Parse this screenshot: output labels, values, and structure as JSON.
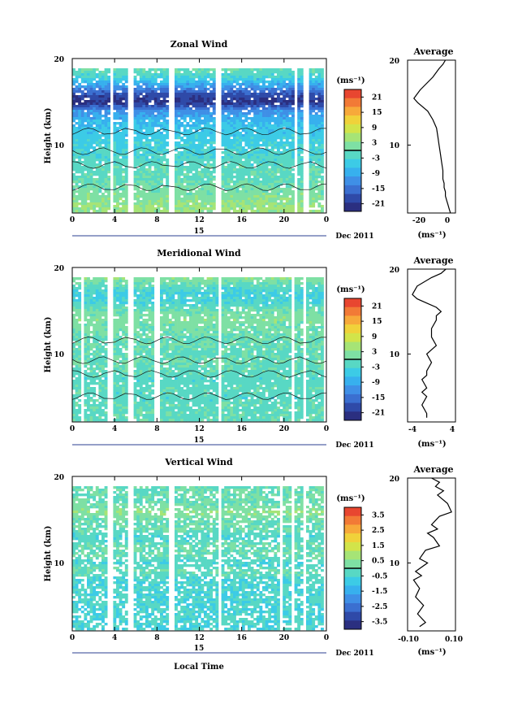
{
  "colorbar_colors": [
    "#2b2f80",
    "#2f4aa8",
    "#3b6fd0",
    "#3f8fe6",
    "#37b0ee",
    "#3ccbe6",
    "#58d8c4",
    "#7ee0a4",
    "#a6e476",
    "#d2e44a",
    "#f0d23a",
    "#f7a93a",
    "#f27a36",
    "#e84630"
  ],
  "panels": [
    {
      "id": "zonal",
      "title": "Zonal Wind",
      "ylabel": "Height (km)",
      "yticks": [
        "20",
        "10"
      ],
      "xticks": [
        "0",
        "4",
        "8",
        "12",
        "16",
        "20",
        "0"
      ],
      "date_label": "15",
      "month_label": "Dec 2011",
      "unit": "(ms⁻¹)",
      "cbar_ticks": [
        "21",
        "15",
        "9",
        "3",
        "-3",
        "-9",
        "-15",
        "-21"
      ],
      "avg_title": "Average",
      "avg_xticks": [
        "-20",
        "0"
      ],
      "avg_yticks": [
        "20",
        "10"
      ],
      "avg_unit": "(ms⁻¹)"
    },
    {
      "id": "meridional",
      "title": "Meridional Wind",
      "ylabel": "Height (km)",
      "yticks": [
        "20",
        "10"
      ],
      "xticks": [
        "0",
        "4",
        "8",
        "12",
        "16",
        "20",
        "0"
      ],
      "date_label": "15",
      "month_label": "Dec 2011",
      "unit": "(ms⁻¹)",
      "cbar_ticks": [
        "21",
        "15",
        "9",
        "3",
        "-3",
        "-9",
        "-15",
        "-21"
      ],
      "avg_title": "Average",
      "avg_xticks": [
        "-4",
        "4"
      ],
      "avg_yticks": [
        "20",
        "10"
      ],
      "avg_unit": "(ms⁻¹)"
    },
    {
      "id": "vertical",
      "title": "Vertical Wind",
      "ylabel": "Height (km)",
      "yticks": [
        "20",
        "10"
      ],
      "xticks": [
        "0",
        "4",
        "8",
        "12",
        "16",
        "20",
        "0"
      ],
      "date_label": "15",
      "month_label": "Dec 2011",
      "unit": "(ms⁻¹)",
      "cbar_ticks": [
        "3.5",
        "2.5",
        "1.5",
        "0.5",
        "-0.5",
        "-1.5",
        "-2.5",
        "-3.5"
      ],
      "avg_title": "Average",
      "avg_xticks": [
        "-0.10",
        "0.10"
      ],
      "avg_yticks": [
        "20",
        "10"
      ],
      "avg_unit": "(ms⁻¹)"
    }
  ],
  "xlabel": "Local Time",
  "chart_data": [
    {
      "type": "heatmap",
      "title": "Zonal Wind",
      "xlabel": "",
      "ylabel": "Height (km)",
      "xlim": [
        0,
        24
      ],
      "ylim": [
        2,
        20
      ],
      "x_tick_labels": [
        "0",
        "4",
        "8",
        "12",
        "16",
        "20",
        "0"
      ],
      "colorbar": {
        "unit": "(ms⁻¹)",
        "range": [
          -24,
          24
        ],
        "ticks": [
          21,
          15,
          9,
          3,
          -3,
          -9,
          -15,
          -21
        ]
      },
      "gaps_hours": [
        [
          3.4,
          3.9
        ],
        [
          5.2,
          5.6
        ],
        [
          9.0,
          9.5
        ],
        [
          13.6,
          14.0
        ],
        [
          21.0,
          21.3
        ],
        [
          22.0,
          22.4
        ]
      ],
      "profile_rows": [
        {
          "height": 19,
          "value": 0
        },
        {
          "height": 18,
          "value": -3
        },
        {
          "height": 17,
          "value": -10
        },
        {
          "height": 16,
          "value": -18
        },
        {
          "height": 15,
          "value": -22
        },
        {
          "height": 14,
          "value": -12
        },
        {
          "height": 13,
          "value": -8
        },
        {
          "height": 12,
          "value": -6
        },
        {
          "height": 11,
          "value": -5
        },
        {
          "height": 10,
          "value": -4
        },
        {
          "height": 9,
          "value": -3
        },
        {
          "height": 8,
          "value": -2
        },
        {
          "height": 7,
          "value": -1
        },
        {
          "height": 6,
          "value": -1
        },
        {
          "height": 5,
          "value": 1
        },
        {
          "height": 4,
          "value": 2
        },
        {
          "height": 3,
          "value": 4
        }
      ]
    },
    {
      "type": "line",
      "title": "Average",
      "xlabel": "(ms⁻¹)",
      "ylabel": "",
      "xlim": [
        -30,
        8
      ],
      "ylim": [
        2,
        20
      ],
      "x": [
        0,
        -2,
        -5,
        -10,
        -20,
        -25,
        -22,
        -14,
        -10,
        -7,
        -6,
        -5,
        -4,
        -3,
        -2,
        -2,
        -1,
        -1,
        0,
        0,
        1,
        2,
        3,
        4
      ],
      "y": [
        20,
        19.5,
        19,
        18,
        16.5,
        15.5,
        15,
        14,
        13,
        12,
        11,
        10,
        9,
        8,
        7,
        6,
        5.5,
        5,
        4.5,
        4,
        3.5,
        3,
        2.5,
        2
      ]
    },
    {
      "type": "heatmap",
      "title": "Meridional Wind",
      "xlabel": "",
      "ylabel": "Height (km)",
      "xlim": [
        0,
        24
      ],
      "ylim": [
        2,
        20
      ],
      "x_tick_labels": [
        "0",
        "4",
        "8",
        "12",
        "16",
        "20",
        "0"
      ],
      "colorbar": {
        "unit": "(ms⁻¹)",
        "range": [
          -24,
          24
        ],
        "ticks": [
          21,
          15,
          9,
          3,
          -3,
          -9,
          -15,
          -21
        ]
      },
      "gaps_hours": [
        [
          0.6,
          0.9
        ],
        [
          3.3,
          3.7
        ],
        [
          5.3,
          5.6
        ],
        [
          7.8,
          8.2
        ],
        [
          11.2,
          11.4
        ],
        [
          13.7,
          14.1
        ],
        [
          20.8,
          21.1
        ],
        [
          21.9,
          22.3
        ]
      ],
      "profile_rows": [
        {
          "height": 19,
          "value": 3
        },
        {
          "height": 18,
          "value": -1
        },
        {
          "height": 17,
          "value": -4
        },
        {
          "height": 16,
          "value": -3
        },
        {
          "height": 15,
          "value": 1
        },
        {
          "height": 14,
          "value": 2
        },
        {
          "height": 13,
          "value": 1
        },
        {
          "height": 12,
          "value": 0
        },
        {
          "height": 11,
          "value": 0
        },
        {
          "height": 10,
          "value": -1
        },
        {
          "height": 9,
          "value": 0
        },
        {
          "height": 8,
          "value": -1
        },
        {
          "height": 7,
          "value": -2
        },
        {
          "height": 6,
          "value": -1
        },
        {
          "height": 5,
          "value": -2
        },
        {
          "height": 4,
          "value": -1
        },
        {
          "height": 3,
          "value": -1
        }
      ]
    },
    {
      "type": "line",
      "title": "Average",
      "xlabel": "(ms⁻¹)",
      "ylabel": "",
      "xlim": [
        -5,
        5
      ],
      "ylim": [
        2,
        20
      ],
      "x": [
        3,
        2,
        0,
        -3,
        -4,
        -3,
        -1,
        1,
        2,
        1,
        1,
        0,
        0,
        1,
        0,
        -1,
        0,
        -1,
        -1,
        -2,
        -1,
        -2,
        -1,
        -2,
        -1,
        -1
      ],
      "y": [
        20,
        19.5,
        19,
        18,
        17,
        16.5,
        16,
        15.5,
        15,
        14.5,
        14,
        13,
        12,
        11,
        10.5,
        10,
        9,
        8,
        7.5,
        7,
        6,
        5.5,
        5,
        4,
        3,
        2.5
      ]
    },
    {
      "type": "heatmap",
      "title": "Vertical Wind",
      "xlabel": "Local Time",
      "ylabel": "Height (km)",
      "xlim": [
        0,
        24
      ],
      "ylim": [
        2,
        20
      ],
      "x_tick_labels": [
        "0",
        "4",
        "8",
        "12",
        "16",
        "20",
        "0"
      ],
      "colorbar": {
        "unit": "(ms⁻¹)",
        "range": [
          -4,
          4
        ],
        "ticks": [
          3.5,
          2.5,
          1.5,
          0.5,
          -0.5,
          -1.5,
          -2.5,
          -3.5
        ]
      },
      "gaps_hours": [
        [
          3.3,
          3.7
        ],
        [
          5.3,
          5.6
        ],
        [
          9.0,
          9.5
        ],
        [
          13.7,
          14.1
        ],
        [
          19.8,
          20.0
        ],
        [
          20.9,
          21.1
        ],
        [
          22.0,
          22.3
        ]
      ],
      "profile_rows": [
        {
          "height": 19,
          "value": 0
        },
        {
          "height": 18,
          "value": 0
        },
        {
          "height": 17,
          "value": 0
        },
        {
          "height": 16,
          "value": 0.5
        },
        {
          "height": 15,
          "value": 0
        },
        {
          "height": 14,
          "value": 0
        },
        {
          "height": 13,
          "value": -0.5
        },
        {
          "height": 12,
          "value": 0
        },
        {
          "height": 11,
          "value": 0
        },
        {
          "height": 10,
          "value": -0.5
        },
        {
          "height": 9,
          "value": 0
        },
        {
          "height": 8,
          "value": -0.5
        },
        {
          "height": 7,
          "value": -0.5
        },
        {
          "height": 6,
          "value": -0.5
        },
        {
          "height": 5,
          "value": -0.5
        },
        {
          "height": 4,
          "value": -0.5
        },
        {
          "height": 3,
          "value": -0.5
        }
      ]
    },
    {
      "type": "line",
      "title": "Average",
      "xlabel": "(ms⁻¹)",
      "ylabel": "",
      "xlim": [
        -0.12,
        0.12
      ],
      "ylim": [
        2,
        20
      ],
      "x": [
        0.0,
        0.04,
        0.02,
        0.06,
        0.03,
        0.08,
        0.1,
        0.04,
        0.02,
        0.0,
        0.03,
        -0.02,
        0.01,
        0.04,
        -0.03,
        -0.06,
        -0.02,
        -0.08,
        -0.05,
        -0.09,
        -0.06,
        -0.08,
        -0.04,
        -0.07,
        -0.03,
        -0.06
      ],
      "y": [
        20,
        19.5,
        19,
        18.5,
        18,
        17,
        16,
        15.5,
        15,
        14.5,
        14,
        13.5,
        13,
        12,
        11.5,
        10.5,
        10,
        9,
        8.5,
        8,
        7,
        6,
        5,
        4,
        3,
        2.5
      ]
    }
  ]
}
